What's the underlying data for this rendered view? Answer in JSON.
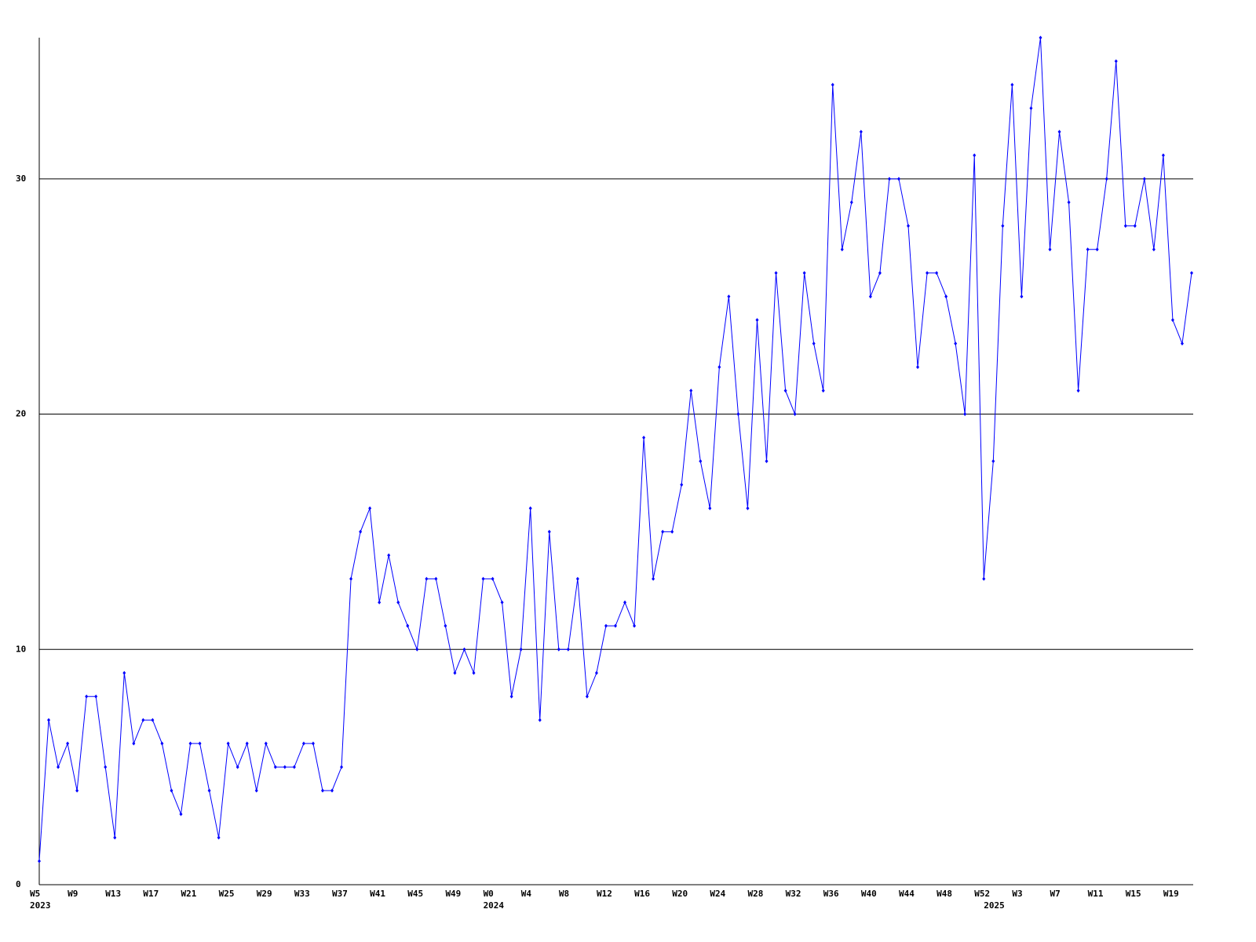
{
  "chart_data": {
    "type": "line",
    "categories": [
      "W5",
      null,
      null,
      null,
      "W9",
      null,
      null,
      null,
      "W13",
      null,
      null,
      null,
      "W17",
      null,
      null,
      null,
      "W21",
      null,
      null,
      null,
      "W25",
      null,
      null,
      null,
      "W29",
      null,
      null,
      null,
      "W33",
      null,
      null,
      null,
      "W37",
      null,
      null,
      null,
      "W41",
      null,
      null,
      null,
      "W45",
      null,
      null,
      null,
      "W49",
      null,
      null,
      null,
      "W0",
      null,
      null,
      null,
      "W4",
      null,
      null,
      null,
      "W8",
      null,
      null,
      null,
      "W12",
      null,
      null,
      null,
      "W16",
      null,
      null,
      null,
      "W20",
      null,
      null,
      null,
      "W24",
      null,
      null,
      null,
      "W28",
      null,
      null,
      null,
      "W32",
      null,
      null,
      null,
      "W36",
      null,
      null,
      null,
      "W40",
      null,
      null,
      null,
      "W44",
      null,
      null,
      null,
      "W48",
      null,
      null,
      null,
      "W52",
      null,
      null,
      null,
      "W3",
      null,
      null,
      null,
      "W7",
      null,
      null,
      null,
      "W11",
      null,
      null,
      null,
      "W15",
      null,
      null,
      null,
      "W19",
      null,
      null
    ],
    "years": [
      "2023",
      null,
      null,
      null,
      null,
      null,
      null,
      null,
      null,
      null,
      null,
      null,
      null,
      null,
      null,
      null,
      null,
      null,
      null,
      null,
      null,
      null,
      null,
      null,
      null,
      null,
      null,
      null,
      null,
      null,
      null,
      null,
      null,
      null,
      null,
      null,
      null,
      null,
      null,
      null,
      null,
      null,
      null,
      null,
      null,
      null,
      null,
      null,
      "2024",
      null,
      null,
      null,
      null,
      null,
      null,
      null,
      null,
      null,
      null,
      null,
      null,
      null,
      null,
      null,
      null,
      null,
      null,
      null,
      null,
      null,
      null,
      null,
      null,
      null,
      null,
      null,
      null,
      null,
      null,
      null,
      null,
      null,
      null,
      null,
      null,
      null,
      null,
      null,
      null,
      null,
      null,
      null,
      null,
      null,
      null,
      null,
      null,
      null,
      null,
      null,
      null,
      "2025",
      null,
      null,
      null,
      null,
      null,
      null,
      null,
      null,
      null,
      null,
      null,
      null,
      null,
      null,
      null,
      null,
      null,
      null,
      null,
      null,
      null
    ],
    "series": [
      {
        "color": "#0000ff",
        "values": [
          1,
          7,
          5,
          6,
          4,
          8,
          8,
          5,
          2,
          9,
          6,
          7,
          7,
          6,
          4,
          3,
          6,
          6,
          4,
          2,
          6,
          5,
          6,
          4,
          6,
          5,
          5,
          5,
          6,
          6,
          4,
          4,
          5,
          13,
          15,
          16,
          12,
          14,
          12,
          11,
          10,
          13,
          13,
          11,
          9,
          10,
          9,
          13,
          13,
          12,
          8,
          10,
          16,
          7,
          15,
          10,
          10,
          13,
          8,
          9,
          11,
          11,
          12,
          11,
          19,
          13,
          15,
          15,
          17,
          21,
          18,
          16,
          22,
          25,
          20,
          16,
          24,
          18,
          26,
          21,
          20,
          26,
          23,
          21,
          34,
          27,
          29,
          32,
          25,
          26,
          30,
          30,
          28,
          22,
          26,
          26,
          25,
          23,
          20,
          31,
          13,
          18,
          28,
          34,
          25,
          33,
          36,
          27,
          32,
          29,
          21,
          27,
          27,
          30,
          35,
          28,
          28,
          30,
          27,
          31,
          24,
          23,
          26
        ]
      }
    ],
    "ylim": [
      0,
      36
    ],
    "yticks": [
      0,
      10,
      20,
      30
    ],
    "grid": true
  }
}
